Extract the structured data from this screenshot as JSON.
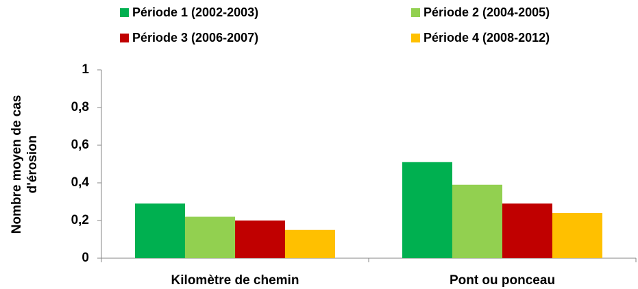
{
  "chart_data": {
    "type": "bar",
    "ylabel": [
      "Nombre moyen de cas",
      "d'érosion"
    ],
    "categories": [
      "Kilomètre de chemin",
      "Pont ou ponceau"
    ],
    "series": [
      {
        "name": "Période 1 (2002-2003)",
        "color": "#00b050",
        "values": [
          0.29,
          0.51
        ]
      },
      {
        "name": "Période 2 (2004-2005)",
        "color": "#92d050",
        "values": [
          0.22,
          0.39
        ]
      },
      {
        "name": "Période 3 (2006-2007)",
        "color": "#c00000",
        "values": [
          0.2,
          0.29
        ]
      },
      {
        "name": "Période 4 (2008-2012)",
        "color": "#ffc000",
        "values": [
          0.15,
          0.24
        ]
      }
    ],
    "ylim": [
      0,
      1
    ],
    "yticks": [
      0,
      {
        "value": 0.2,
        "label": "0,2"
      },
      {
        "value": 0.4,
        "label": "0,4"
      },
      {
        "value": 0.6,
        "label": "0,6"
      },
      {
        "value": 0.8,
        "label": "0,8"
      },
      1
    ],
    "grid": false,
    "legend": "top"
  }
}
